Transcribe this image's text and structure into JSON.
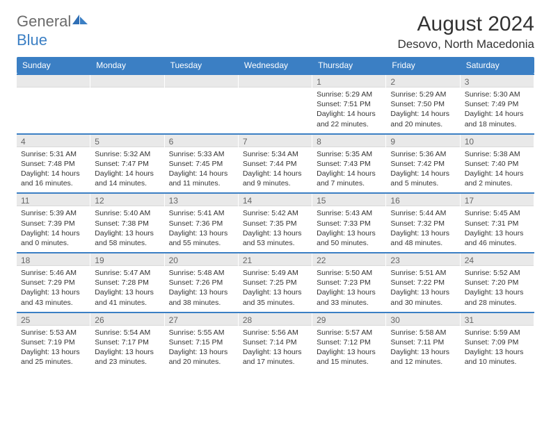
{
  "logo": {
    "text_part1": "General",
    "text_part2": "Blue"
  },
  "title": "August 2024",
  "location": "Desovo, North Macedonia",
  "colors": {
    "header_bar": "#3b7fc4",
    "band_bg": "#e9e9e9",
    "text_dark": "#333333",
    "text_muted": "#666666"
  },
  "weekdays": [
    "Sunday",
    "Monday",
    "Tuesday",
    "Wednesday",
    "Thursday",
    "Friday",
    "Saturday"
  ],
  "weeks": [
    [
      {
        "day": "",
        "sunrise": "",
        "sunset": "",
        "daylight": ""
      },
      {
        "day": "",
        "sunrise": "",
        "sunset": "",
        "daylight": ""
      },
      {
        "day": "",
        "sunrise": "",
        "sunset": "",
        "daylight": ""
      },
      {
        "day": "",
        "sunrise": "",
        "sunset": "",
        "daylight": ""
      },
      {
        "day": "1",
        "sunrise": "Sunrise: 5:29 AM",
        "sunset": "Sunset: 7:51 PM",
        "daylight": "Daylight: 14 hours and 22 minutes."
      },
      {
        "day": "2",
        "sunrise": "Sunrise: 5:29 AM",
        "sunset": "Sunset: 7:50 PM",
        "daylight": "Daylight: 14 hours and 20 minutes."
      },
      {
        "day": "3",
        "sunrise": "Sunrise: 5:30 AM",
        "sunset": "Sunset: 7:49 PM",
        "daylight": "Daylight: 14 hours and 18 minutes."
      }
    ],
    [
      {
        "day": "4",
        "sunrise": "Sunrise: 5:31 AM",
        "sunset": "Sunset: 7:48 PM",
        "daylight": "Daylight: 14 hours and 16 minutes."
      },
      {
        "day": "5",
        "sunrise": "Sunrise: 5:32 AM",
        "sunset": "Sunset: 7:47 PM",
        "daylight": "Daylight: 14 hours and 14 minutes."
      },
      {
        "day": "6",
        "sunrise": "Sunrise: 5:33 AM",
        "sunset": "Sunset: 7:45 PM",
        "daylight": "Daylight: 14 hours and 11 minutes."
      },
      {
        "day": "7",
        "sunrise": "Sunrise: 5:34 AM",
        "sunset": "Sunset: 7:44 PM",
        "daylight": "Daylight: 14 hours and 9 minutes."
      },
      {
        "day": "8",
        "sunrise": "Sunrise: 5:35 AM",
        "sunset": "Sunset: 7:43 PM",
        "daylight": "Daylight: 14 hours and 7 minutes."
      },
      {
        "day": "9",
        "sunrise": "Sunrise: 5:36 AM",
        "sunset": "Sunset: 7:42 PM",
        "daylight": "Daylight: 14 hours and 5 minutes."
      },
      {
        "day": "10",
        "sunrise": "Sunrise: 5:38 AM",
        "sunset": "Sunset: 7:40 PM",
        "daylight": "Daylight: 14 hours and 2 minutes."
      }
    ],
    [
      {
        "day": "11",
        "sunrise": "Sunrise: 5:39 AM",
        "sunset": "Sunset: 7:39 PM",
        "daylight": "Daylight: 14 hours and 0 minutes."
      },
      {
        "day": "12",
        "sunrise": "Sunrise: 5:40 AM",
        "sunset": "Sunset: 7:38 PM",
        "daylight": "Daylight: 13 hours and 58 minutes."
      },
      {
        "day": "13",
        "sunrise": "Sunrise: 5:41 AM",
        "sunset": "Sunset: 7:36 PM",
        "daylight": "Daylight: 13 hours and 55 minutes."
      },
      {
        "day": "14",
        "sunrise": "Sunrise: 5:42 AM",
        "sunset": "Sunset: 7:35 PM",
        "daylight": "Daylight: 13 hours and 53 minutes."
      },
      {
        "day": "15",
        "sunrise": "Sunrise: 5:43 AM",
        "sunset": "Sunset: 7:33 PM",
        "daylight": "Daylight: 13 hours and 50 minutes."
      },
      {
        "day": "16",
        "sunrise": "Sunrise: 5:44 AM",
        "sunset": "Sunset: 7:32 PM",
        "daylight": "Daylight: 13 hours and 48 minutes."
      },
      {
        "day": "17",
        "sunrise": "Sunrise: 5:45 AM",
        "sunset": "Sunset: 7:31 PM",
        "daylight": "Daylight: 13 hours and 46 minutes."
      }
    ],
    [
      {
        "day": "18",
        "sunrise": "Sunrise: 5:46 AM",
        "sunset": "Sunset: 7:29 PM",
        "daylight": "Daylight: 13 hours and 43 minutes."
      },
      {
        "day": "19",
        "sunrise": "Sunrise: 5:47 AM",
        "sunset": "Sunset: 7:28 PM",
        "daylight": "Daylight: 13 hours and 41 minutes."
      },
      {
        "day": "20",
        "sunrise": "Sunrise: 5:48 AM",
        "sunset": "Sunset: 7:26 PM",
        "daylight": "Daylight: 13 hours and 38 minutes."
      },
      {
        "day": "21",
        "sunrise": "Sunrise: 5:49 AM",
        "sunset": "Sunset: 7:25 PM",
        "daylight": "Daylight: 13 hours and 35 minutes."
      },
      {
        "day": "22",
        "sunrise": "Sunrise: 5:50 AM",
        "sunset": "Sunset: 7:23 PM",
        "daylight": "Daylight: 13 hours and 33 minutes."
      },
      {
        "day": "23",
        "sunrise": "Sunrise: 5:51 AM",
        "sunset": "Sunset: 7:22 PM",
        "daylight": "Daylight: 13 hours and 30 minutes."
      },
      {
        "day": "24",
        "sunrise": "Sunrise: 5:52 AM",
        "sunset": "Sunset: 7:20 PM",
        "daylight": "Daylight: 13 hours and 28 minutes."
      }
    ],
    [
      {
        "day": "25",
        "sunrise": "Sunrise: 5:53 AM",
        "sunset": "Sunset: 7:19 PM",
        "daylight": "Daylight: 13 hours and 25 minutes."
      },
      {
        "day": "26",
        "sunrise": "Sunrise: 5:54 AM",
        "sunset": "Sunset: 7:17 PM",
        "daylight": "Daylight: 13 hours and 23 minutes."
      },
      {
        "day": "27",
        "sunrise": "Sunrise: 5:55 AM",
        "sunset": "Sunset: 7:15 PM",
        "daylight": "Daylight: 13 hours and 20 minutes."
      },
      {
        "day": "28",
        "sunrise": "Sunrise: 5:56 AM",
        "sunset": "Sunset: 7:14 PM",
        "daylight": "Daylight: 13 hours and 17 minutes."
      },
      {
        "day": "29",
        "sunrise": "Sunrise: 5:57 AM",
        "sunset": "Sunset: 7:12 PM",
        "daylight": "Daylight: 13 hours and 15 minutes."
      },
      {
        "day": "30",
        "sunrise": "Sunrise: 5:58 AM",
        "sunset": "Sunset: 7:11 PM",
        "daylight": "Daylight: 13 hours and 12 minutes."
      },
      {
        "day": "31",
        "sunrise": "Sunrise: 5:59 AM",
        "sunset": "Sunset: 7:09 PM",
        "daylight": "Daylight: 13 hours and 10 minutes."
      }
    ]
  ]
}
